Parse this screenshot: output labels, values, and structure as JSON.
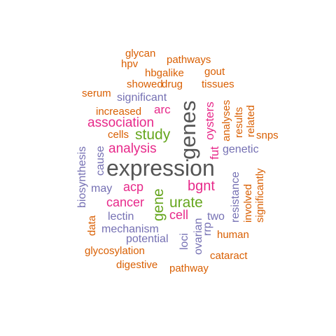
{
  "colors": {
    "orange": "#d95f02",
    "purple": "#7570b3",
    "pink": "#e7298a",
    "green": "#66a61e",
    "dark": "#555555"
  },
  "words": {
    "expression": "expression",
    "genes": "genes",
    "urate": "urate",
    "gene": "gene",
    "study": "study",
    "analysis": "analysis",
    "association": "association",
    "bgnt": "bgnt",
    "cancer": "cancer",
    "acp": "acp",
    "cell": "cell",
    "oysters": "oysters",
    "fut": "fut",
    "arc": "arc",
    "significant": "significant",
    "mechanism": "mechanism",
    "potential": "potential",
    "lectin": "lectin",
    "may": "may",
    "biosynthesis": "biosynthesis",
    "cause": "cause",
    "genetic": "genetic",
    "resistance": "resistance",
    "two": "two",
    "rrp": "rrp",
    "ovarian": "ovarian",
    "loci": "loci",
    "glycan": "glycan",
    "pathways": "pathways",
    "hpv": "hpv",
    "hbgalike": "hbgalike",
    "gout": "gout",
    "showed": "showed",
    "drug": "drug",
    "tissues": "tissues",
    "serum": "serum",
    "increased": "increased",
    "cells": "cells",
    "analyses": "analyses",
    "results": "results",
    "related": "related",
    "snps": "snps",
    "involved": "involved",
    "significantly": "significantly",
    "human": "human",
    "data": "data",
    "glycosylation": "glycosylation",
    "cataract": "cataract",
    "digestive": "digestive",
    "pathway": "pathway"
  }
}
